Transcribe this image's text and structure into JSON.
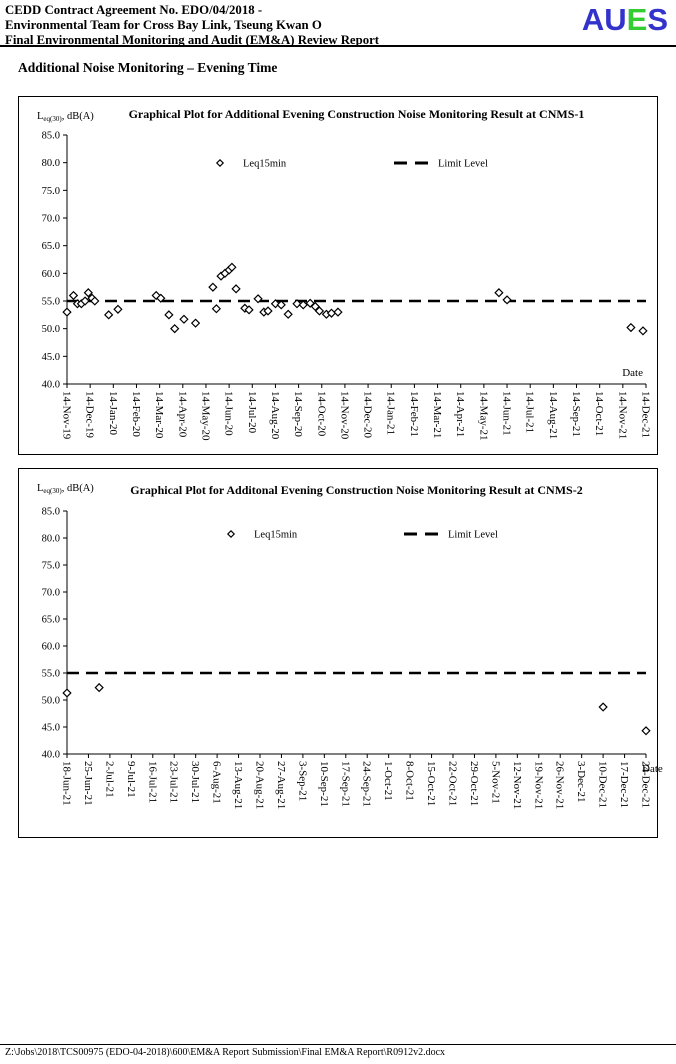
{
  "header": {
    "line1": "CEDD Contract Agreement No. EDO/04/2018 -",
    "line2": "Environmental Team for Cross Bay Link, Tseung Kwan O",
    "line3": "Final Environmental Monitoring and Audit (EM&A) Review Report",
    "logo": {
      "letters": [
        {
          "ch": "A",
          "color": "#3333cc"
        },
        {
          "ch": "U",
          "color": "#3333cc"
        },
        {
          "ch": "E",
          "color": "#33cc33"
        },
        {
          "ch": "S",
          "color": "#3333cc"
        }
      ]
    }
  },
  "section_title": "Additional Noise Monitoring – Evening Time",
  "footer": {
    "path": "Z:\\Jobs\\2018\\TCS00975 (EDO-04-2018)\\600\\EM&A Report Submission\\Final EM&A Report\\R0912v2.docx"
  },
  "chart_data": [
    {
      "type": "scatter",
      "title": "Graphical Plot for Additional Evening Construction Noise Monitoring Result at CNMS-1",
      "ylabel": {
        "base": "L",
        "sub": "eq(30)",
        "rest": ", dB(A)"
      },
      "xlabel": "Date",
      "ylim": [
        40.0,
        85.0
      ],
      "ytick_step": 5.0,
      "grid": false,
      "legend": [
        "Leq15min",
        "Limit Level"
      ],
      "legend_position": "top-inside",
      "limit_level": 55.0,
      "categories": [
        "14-Nov-19",
        "14-Dec-19",
        "14-Jan-20",
        "14-Feb-20",
        "14-Mar-20",
        "14-Apr-20",
        "14-May-20",
        "14-Jun-20",
        "14-Jul-20",
        "14-Aug-20",
        "14-Sep-20",
        "14-Oct-20",
        "14-Nov-20",
        "14-Dec-20",
        "14-Jan-21",
        "14-Feb-21",
        "14-Mar-21",
        "14-Apr-21",
        "14-May-21",
        "14-Jun-21",
        "14-Jul-21",
        "14-Aug-21",
        "14-Sep-21",
        "14-Oct-21",
        "14-Nov-21",
        "14-Dec-21"
      ],
      "points": [
        {
          "x": 0.0,
          "y": 53.0
        },
        {
          "x": 0.28,
          "y": 56.0
        },
        {
          "x": 0.45,
          "y": 54.5
        },
        {
          "x": 0.62,
          "y": 54.5
        },
        {
          "x": 0.78,
          "y": 55.0
        },
        {
          "x": 0.92,
          "y": 56.5
        },
        {
          "x": 1.08,
          "y": 55.5
        },
        {
          "x": 1.2,
          "y": 55.0
        },
        {
          "x": 1.8,
          "y": 52.5
        },
        {
          "x": 2.2,
          "y": 53.5
        },
        {
          "x": 3.85,
          "y": 56.0
        },
        {
          "x": 4.05,
          "y": 55.5
        },
        {
          "x": 4.4,
          "y": 52.5
        },
        {
          "x": 4.65,
          "y": 50.0
        },
        {
          "x": 5.05,
          "y": 51.7
        },
        {
          "x": 5.55,
          "y": 51.0
        },
        {
          "x": 6.3,
          "y": 57.5
        },
        {
          "x": 6.45,
          "y": 53.6
        },
        {
          "x": 6.65,
          "y": 59.5
        },
        {
          "x": 6.82,
          "y": 60.0
        },
        {
          "x": 7.0,
          "y": 60.6
        },
        {
          "x": 7.12,
          "y": 61.1
        },
        {
          "x": 7.3,
          "y": 57.2
        },
        {
          "x": 7.68,
          "y": 53.7
        },
        {
          "x": 7.86,
          "y": 53.4
        },
        {
          "x": 8.25,
          "y": 55.4
        },
        {
          "x": 8.5,
          "y": 53.0
        },
        {
          "x": 8.68,
          "y": 53.2
        },
        {
          "x": 9.0,
          "y": 54.5
        },
        {
          "x": 9.25,
          "y": 54.3
        },
        {
          "x": 9.55,
          "y": 52.6
        },
        {
          "x": 9.93,
          "y": 54.5
        },
        {
          "x": 10.2,
          "y": 54.3
        },
        {
          "x": 10.5,
          "y": 54.6
        },
        {
          "x": 10.72,
          "y": 54.0
        },
        {
          "x": 10.9,
          "y": 53.2
        },
        {
          "x": 11.2,
          "y": 52.6
        },
        {
          "x": 11.42,
          "y": 52.8
        },
        {
          "x": 11.7,
          "y": 53.0
        },
        {
          "x": 18.65,
          "y": 56.5
        },
        {
          "x": 19.0,
          "y": 55.2
        },
        {
          "x": 24.35,
          "y": 50.2
        },
        {
          "x": 24.87,
          "y": 49.6
        }
      ]
    },
    {
      "type": "scatter",
      "title": "Graphical Plot for Additonal Evening Construction Noise Monitoring Result at CNMS-2",
      "ylabel": {
        "base": "L",
        "sub": "eq(30)",
        "rest": ", dB(A)"
      },
      "xlabel": "Date",
      "ylim": [
        40.0,
        85.0
      ],
      "ytick_step": 5.0,
      "grid": false,
      "legend": [
        "Leq15min",
        "Limit Level"
      ],
      "legend_position": "top-inside",
      "limit_level": 55.0,
      "categories": [
        "18-Jun-21",
        "25-Jun-21",
        "2-Jul-21",
        "9-Jul-21",
        "16-Jul-21",
        "23-Jul-21",
        "30-Jul-21",
        "6-Aug-21",
        "13-Aug-21",
        "20-Aug-21",
        "27-Aug-21",
        "3-Sep-21",
        "10-Sep-21",
        "17-Sep-21",
        "24-Sep-21",
        "1-Oct-21",
        "8-Oct-21",
        "15-Oct-21",
        "22-Oct-21",
        "29-Oct-21",
        "5-Nov-21",
        "12-Nov-21",
        "19-Nov-21",
        "26-Nov-21",
        "3-Dec-21",
        "10-Dec-21",
        "17-Dec-21",
        "24-Dec-21"
      ],
      "points": [
        {
          "x": 0.0,
          "y": 51.3
        },
        {
          "x": 1.5,
          "y": 52.3
        },
        {
          "x": 25.0,
          "y": 48.7
        },
        {
          "x": 27.0,
          "y": 44.3
        }
      ]
    }
  ]
}
